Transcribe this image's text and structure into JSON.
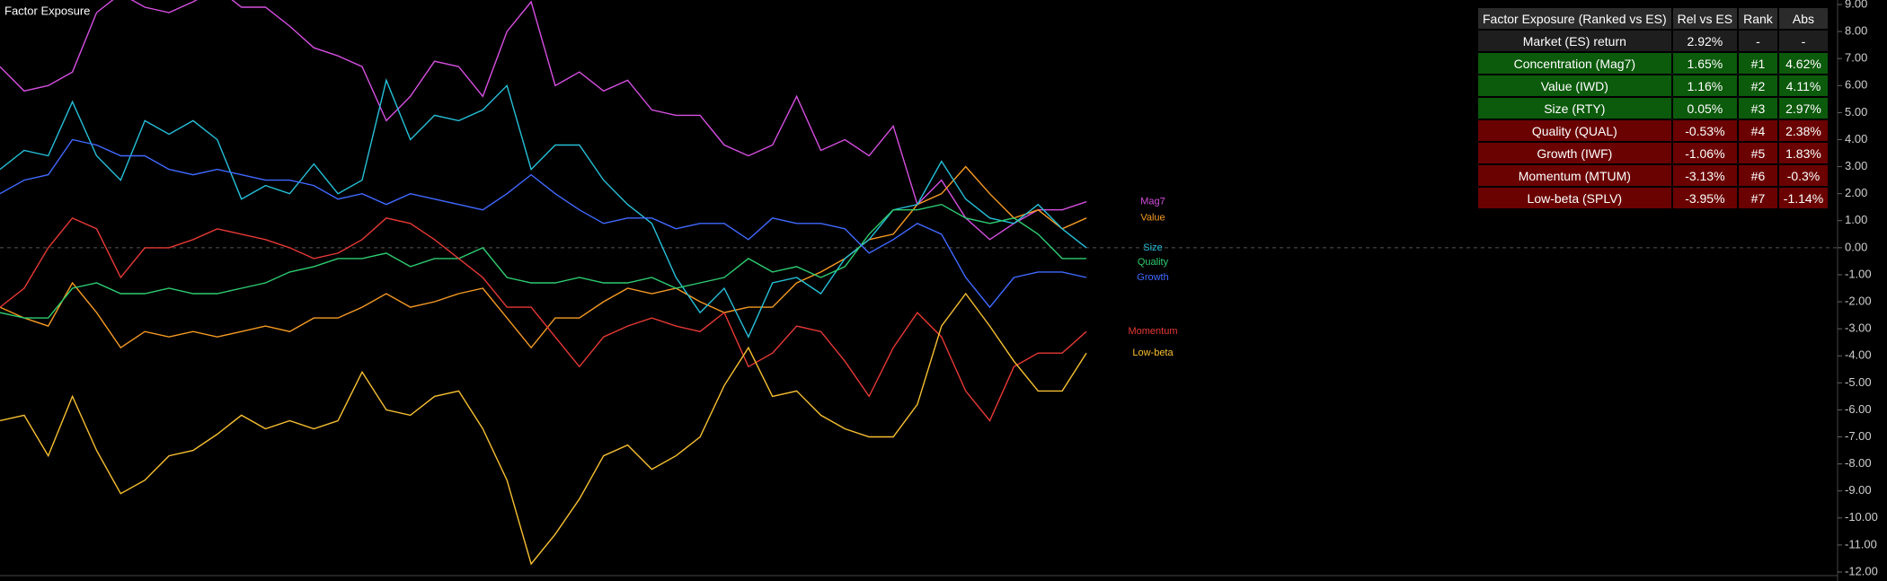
{
  "chart_data": {
    "type": "line",
    "title": "Factor Exposure",
    "categories": [
      null,
      null,
      null,
      null,
      null,
      null,
      null,
      null,
      null,
      null,
      null,
      null,
      null,
      null,
      null,
      null,
      null,
      null,
      null,
      null,
      null,
      null,
      null,
      null,
      null,
      null,
      null,
      null,
      null,
      null,
      null,
      null,
      null,
      null,
      null,
      null,
      null,
      null,
      null,
      null,
      null,
      null,
      null,
      null,
      null,
      null
    ],
    "series": [
      {
        "name": "Mag7",
        "color": "#d54fe0",
        "values": [
          6.7,
          5.8,
          6.0,
          6.5,
          8.7,
          9.4,
          8.9,
          8.7,
          9.1,
          9.6,
          8.9,
          8.9,
          8.2,
          7.4,
          7.1,
          6.7,
          4.7,
          5.6,
          6.9,
          6.7,
          5.6,
          8.0,
          9.1,
          6.0,
          6.5,
          5.8,
          6.2,
          5.1,
          4.9,
          4.9,
          3.8,
          3.4,
          3.8,
          5.6,
          3.6,
          4.0,
          3.4,
          4.5,
          1.6,
          2.5,
          1.1,
          0.3,
          0.9,
          1.4,
          1.4,
          1.7
        ]
      },
      {
        "name": "Value",
        "color": "#f59a23",
        "values": [
          -2.2,
          -2.6,
          -2.9,
          -1.3,
          -2.4,
          -3.7,
          -3.1,
          -3.3,
          -3.1,
          -3.3,
          -3.1,
          -2.9,
          -3.1,
          -2.6,
          -2.6,
          -2.2,
          -1.7,
          -2.2,
          -2.0,
          -1.7,
          -1.5,
          -2.6,
          -3.7,
          -2.6,
          -2.6,
          -2.0,
          -1.5,
          -1.7,
          -1.5,
          -2.0,
          -2.4,
          -2.2,
          -2.2,
          -1.3,
          -0.9,
          -0.4,
          0.3,
          0.5,
          1.6,
          2.0,
          3.0,
          2.0,
          1.1,
          1.4,
          0.7,
          1.1
        ]
      },
      {
        "name": "Size",
        "color": "#26c0d8",
        "values": [
          2.9,
          3.6,
          3.4,
          5.4,
          3.4,
          2.5,
          4.7,
          4.2,
          4.7,
          4.0,
          1.8,
          2.3,
          2.0,
          3.1,
          2.0,
          2.5,
          6.2,
          4.0,
          4.9,
          4.7,
          5.1,
          6.0,
          2.9,
          3.8,
          3.8,
          2.5,
          1.6,
          0.9,
          -1.1,
          -2.4,
          -1.5,
          -3.3,
          -1.3,
          -1.1,
          -1.7,
          -0.4,
          0.3,
          1.4,
          1.6,
          3.2,
          1.8,
          1.1,
          0.9,
          1.6,
          0.7,
          0.0
        ]
      },
      {
        "name": "Quality",
        "color": "#2ecc71",
        "values": [
          -2.4,
          -2.6,
          -2.6,
          -1.5,
          -1.3,
          -1.7,
          -1.7,
          -1.5,
          -1.7,
          -1.7,
          -1.5,
          -1.3,
          -0.9,
          -0.7,
          -0.4,
          -0.4,
          -0.2,
          -0.7,
          -0.4,
          -0.4,
          0.0,
          -1.1,
          -1.3,
          -1.3,
          -1.1,
          -1.3,
          -1.3,
          -1.1,
          -1.5,
          -1.3,
          -1.1,
          -0.4,
          -0.9,
          -0.7,
          -1.1,
          -0.7,
          0.5,
          1.4,
          1.4,
          1.6,
          1.1,
          0.9,
          1.1,
          0.5,
          -0.4,
          -0.4
        ]
      },
      {
        "name": "Growth",
        "color": "#4169ff",
        "values": [
          2.0,
          2.5,
          2.7,
          4.0,
          3.8,
          3.4,
          3.4,
          2.9,
          2.7,
          2.9,
          2.7,
          2.5,
          2.5,
          2.3,
          1.8,
          2.0,
          1.6,
          2.0,
          1.8,
          1.6,
          1.4,
          2.0,
          2.7,
          2.0,
          1.4,
          0.9,
          1.1,
          1.1,
          0.7,
          0.9,
          0.9,
          0.3,
          1.1,
          0.9,
          0.9,
          0.7,
          -0.2,
          0.3,
          0.9,
          0.5,
          -1.1,
          -2.2,
          -1.1,
          -0.9,
          -0.9,
          -1.1
        ]
      },
      {
        "name": "Momentum",
        "color": "#e53935",
        "values": [
          -2.2,
          -1.5,
          0.0,
          1.1,
          0.7,
          -1.1,
          0.0,
          0.0,
          0.3,
          0.7,
          0.5,
          0.3,
          0.0,
          -0.4,
          -0.2,
          0.3,
          1.1,
          0.9,
          0.3,
          -0.4,
          -1.1,
          -2.2,
          -2.2,
          -3.3,
          -4.4,
          -3.3,
          -2.9,
          -2.6,
          -2.9,
          -3.1,
          -2.4,
          -4.4,
          -3.9,
          -2.9,
          -3.1,
          -4.2,
          -5.5,
          -3.7,
          -2.4,
          -3.3,
          -5.3,
          -6.4,
          -4.4,
          -3.9,
          -3.9,
          -3.1
        ]
      },
      {
        "name": "Low-beta",
        "color": "#f7c031",
        "values": [
          -6.4,
          -6.2,
          -7.7,
          -5.5,
          -7.5,
          -9.1,
          -8.6,
          -7.7,
          -7.5,
          -6.9,
          -6.2,
          -6.7,
          -6.4,
          -6.7,
          -6.4,
          -4.6,
          -6.0,
          -6.2,
          -5.5,
          -5.3,
          -6.7,
          -8.6,
          -11.7,
          -10.6,
          -9.3,
          -7.7,
          -7.3,
          -8.2,
          -7.7,
          -7.0,
          -5.1,
          -3.7,
          -5.5,
          -5.3,
          -6.2,
          -6.7,
          -7.0,
          -7.0,
          -5.8,
          -2.9,
          -1.7,
          -2.9,
          -4.2,
          -5.3,
          -5.3,
          -3.9
        ]
      }
    ],
    "ylim": [
      -12,
      9
    ],
    "yticks": [
      {
        "value": 9,
        "label": "9.00"
      },
      {
        "value": 8,
        "label": "8.00"
      },
      {
        "value": 7,
        "label": "7.00"
      },
      {
        "value": 6,
        "label": "6.00"
      },
      {
        "value": 5,
        "label": "5.00"
      },
      {
        "value": 4,
        "label": "4.00"
      },
      {
        "value": 3,
        "label": "3.00"
      },
      {
        "value": 2,
        "label": "2.00"
      },
      {
        "value": 1,
        "label": "1.00"
      },
      {
        "value": 0,
        "label": "0.00"
      },
      {
        "value": -1,
        "label": "-1.00"
      },
      {
        "value": -2,
        "label": "-2.00"
      },
      {
        "value": -3,
        "label": "-3.00"
      },
      {
        "value": -4,
        "label": "-4.00"
      },
      {
        "value": -5,
        "label": "-5.00"
      },
      {
        "value": -6,
        "label": "-6.00"
      },
      {
        "value": -7,
        "label": "-7.00"
      },
      {
        "value": -8,
        "label": "-8.00"
      },
      {
        "value": -9,
        "label": "-9.00"
      },
      {
        "value": -10,
        "label": "-10.00"
      },
      {
        "value": -11,
        "label": "-11.00"
      },
      {
        "value": -12,
        "label": "-12.00"
      }
    ],
    "y_axis_side": "right",
    "zero_line": true,
    "grid": false
  },
  "table": {
    "header": [
      "Factor Exposure (Ranked vs ES)",
      "Rel vs ES",
      "Rank",
      "Abs"
    ],
    "rows": [
      [
        "Market (ES) return",
        "2.92%",
        "-",
        "-"
      ],
      [
        "Concentration (Mag7)",
        "1.65%",
        "#1",
        "4.62%"
      ],
      [
        "Value (IWD)",
        "1.16%",
        "#2",
        "4.11%"
      ],
      [
        "Size (RTY)",
        "0.05%",
        "#3",
        "2.97%"
      ],
      [
        "Quality (QUAL)",
        "-0.53%",
        "#4",
        "2.38%"
      ],
      [
        "Growth (IWF)",
        "-1.06%",
        "#5",
        "1.83%"
      ],
      [
        "Momentum (MTUM)",
        "-3.13%",
        "#6",
        "-0.3%"
      ],
      [
        "Low-beta (SPLV)",
        "-3.95%",
        "#7",
        "-1.14%"
      ]
    ],
    "row_colors": [
      "#1e1e1e",
      "#0c5a0c",
      "#0c5a0c",
      "#0c5a0c",
      "#6a0202",
      "#6a0202",
      "#6a0202",
      "#6a0202"
    ],
    "header_color": "#2b2b2b"
  }
}
